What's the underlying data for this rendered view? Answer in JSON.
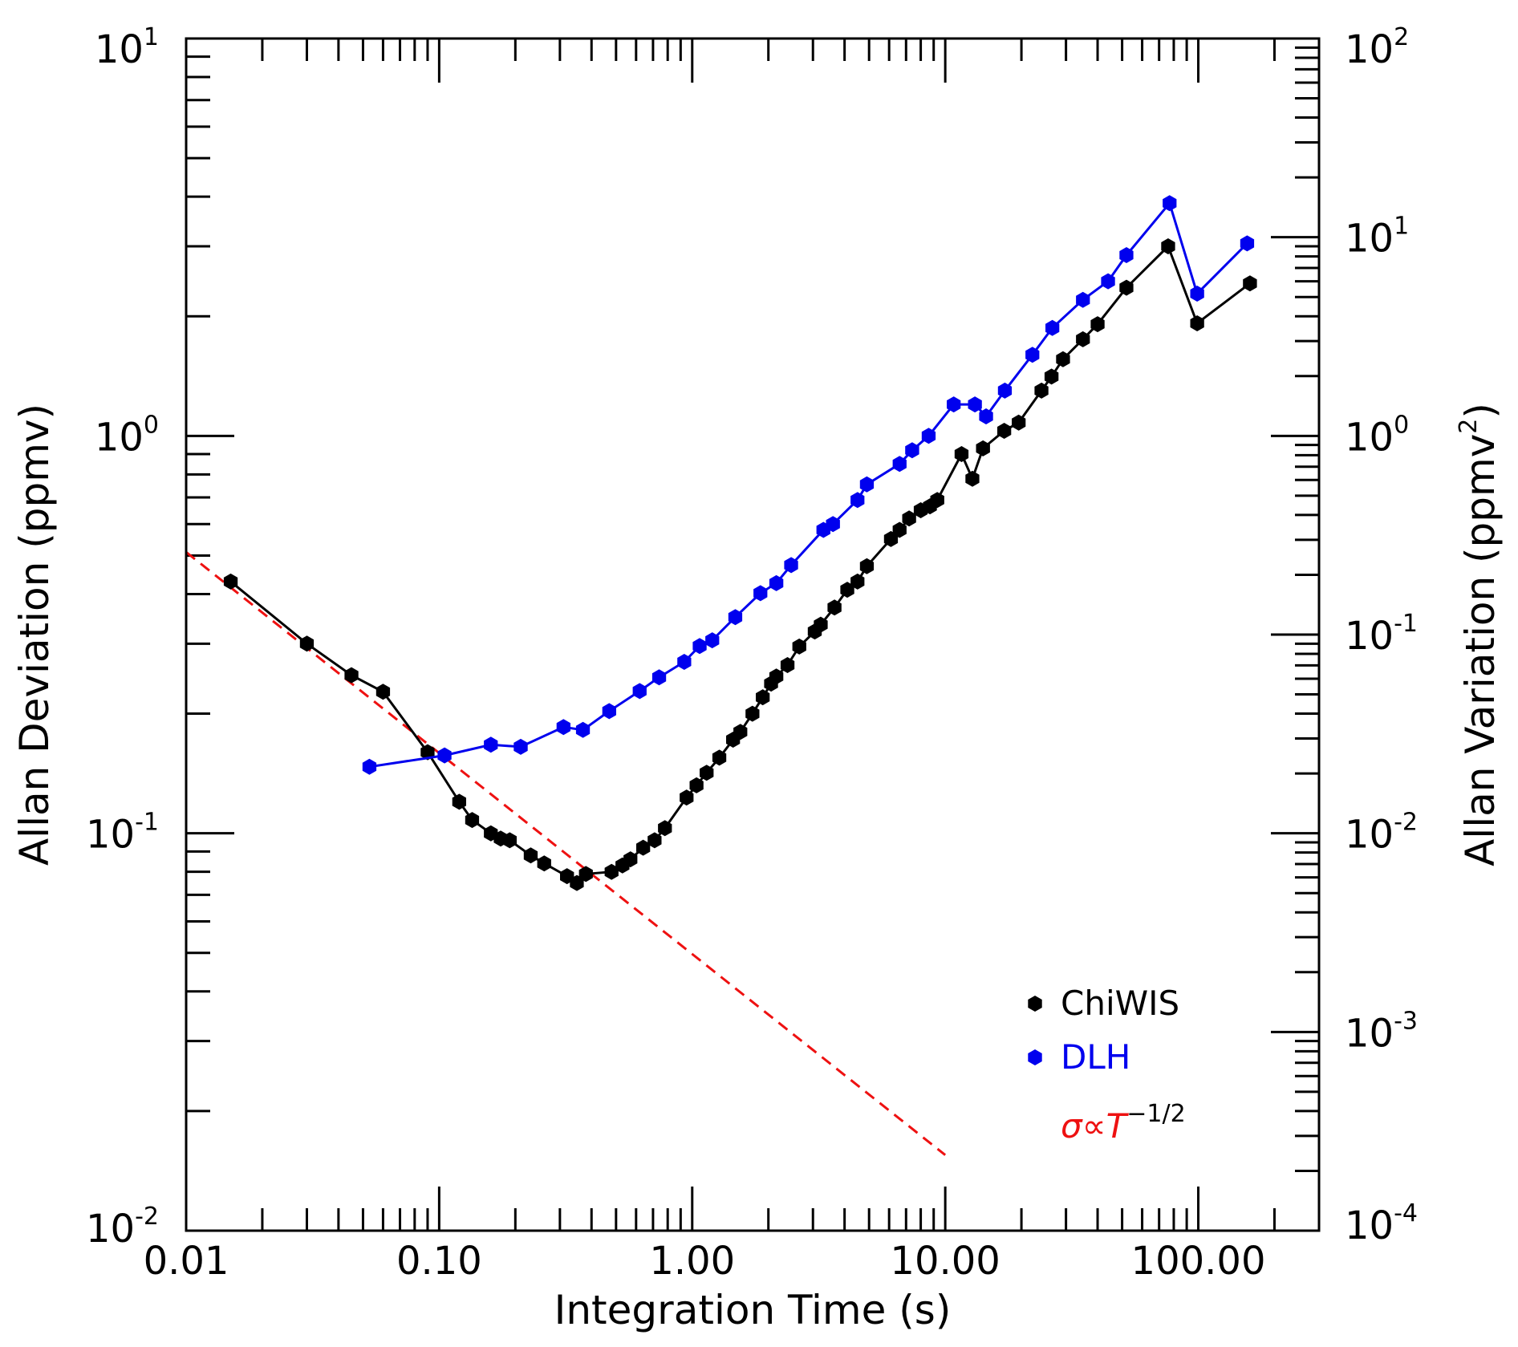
{
  "chart_data": {
    "type": "line",
    "title": "",
    "xlabel": "Integration Time (s)",
    "ylabel": "Allan Deviation (ppmv)",
    "ylabel_right": "Allan Variation (ppmv",
    "ylabel_right_sup": "2",
    "ylabel_right_close": ")",
    "x_scale": "log",
    "y_scale": "log",
    "xlim": [
      0.01,
      300
    ],
    "ylim": [
      0.01,
      10
    ],
    "y2lim": [
      0.0001,
      100
    ],
    "grid": false,
    "legend_position": "bottom-right",
    "x_ticks": [
      {
        "value": 0.01,
        "label": "0.01"
      },
      {
        "value": 0.1,
        "label": "0.10"
      },
      {
        "value": 1,
        "label": "1.00"
      },
      {
        "value": 10,
        "label": "10.00"
      },
      {
        "value": 100,
        "label": "100.00"
      }
    ],
    "y_ticks": [
      {
        "value": 0.01,
        "base": "10",
        "exp": "-2"
      },
      {
        "value": 0.1,
        "base": "10",
        "exp": "-1"
      },
      {
        "value": 1,
        "base": "10",
        "exp": "0"
      },
      {
        "value": 10,
        "base": "10",
        "exp": "1"
      }
    ],
    "y2_ticks": [
      {
        "value": 0.0001,
        "base": "10",
        "exp": "-4"
      },
      {
        "value": 0.001,
        "base": "10",
        "exp": "-3"
      },
      {
        "value": 0.01,
        "base": "10",
        "exp": "-2"
      },
      {
        "value": 0.1,
        "base": "10",
        "exp": "-1"
      },
      {
        "value": 1,
        "base": "10",
        "exp": "0"
      },
      {
        "value": 10,
        "base": "10",
        "exp": "1"
      },
      {
        "value": 100,
        "base": "10",
        "exp": "2"
      }
    ],
    "series": [
      {
        "name": "ChiWIS",
        "color": "#000000",
        "marker": "hexagon",
        "points": [
          [
            0.015,
            0.43
          ],
          [
            0.03,
            0.3
          ],
          [
            0.045,
            0.25
          ],
          [
            0.06,
            0.227
          ],
          [
            0.09,
            0.16
          ],
          [
            0.12,
            0.12
          ],
          [
            0.135,
            0.108
          ],
          [
            0.16,
            0.1
          ],
          [
            0.175,
            0.097
          ],
          [
            0.19,
            0.096
          ],
          [
            0.23,
            0.088
          ],
          [
            0.26,
            0.084
          ],
          [
            0.32,
            0.078
          ],
          [
            0.35,
            0.075
          ],
          [
            0.38,
            0.079
          ],
          [
            0.48,
            0.08
          ],
          [
            0.53,
            0.083
          ],
          [
            0.57,
            0.086
          ],
          [
            0.64,
            0.092
          ],
          [
            0.71,
            0.096
          ],
          [
            0.78,
            0.103
          ],
          [
            0.95,
            0.123
          ],
          [
            1.04,
            0.132
          ],
          [
            1.14,
            0.142
          ],
          [
            1.28,
            0.155
          ],
          [
            1.45,
            0.172
          ],
          [
            1.55,
            0.18
          ],
          [
            1.73,
            0.2
          ],
          [
            1.9,
            0.22
          ],
          [
            2.05,
            0.238
          ],
          [
            2.15,
            0.248
          ],
          [
            2.38,
            0.265
          ],
          [
            2.65,
            0.295
          ],
          [
            3.05,
            0.322
          ],
          [
            3.22,
            0.335
          ],
          [
            3.65,
            0.37
          ],
          [
            4.1,
            0.41
          ],
          [
            4.5,
            0.43
          ],
          [
            4.9,
            0.47
          ],
          [
            6.1,
            0.55
          ],
          [
            6.6,
            0.58
          ],
          [
            7.2,
            0.62
          ],
          [
            8.0,
            0.65
          ],
          [
            8.7,
            0.665
          ],
          [
            9.3,
            0.69
          ],
          [
            11.6,
            0.9
          ],
          [
            12.8,
            0.78
          ],
          [
            14.1,
            0.93
          ],
          [
            17.1,
            1.03
          ],
          [
            19.5,
            1.08
          ],
          [
            24.0,
            1.3
          ],
          [
            26.3,
            1.41
          ],
          [
            29.2,
            1.56
          ],
          [
            35.0,
            1.75
          ],
          [
            40.0,
            1.91
          ],
          [
            52.0,
            2.36
          ],
          [
            76.0,
            3.0
          ],
          [
            99.0,
            1.92
          ],
          [
            160.0,
            2.42
          ]
        ]
      },
      {
        "name": "DLH",
        "color": "#0000ee",
        "marker": "hexagon",
        "points": [
          [
            0.053,
            0.147
          ],
          [
            0.105,
            0.157
          ],
          [
            0.16,
            0.167
          ],
          [
            0.21,
            0.165
          ],
          [
            0.31,
            0.185
          ],
          [
            0.37,
            0.182
          ],
          [
            0.47,
            0.203
          ],
          [
            0.62,
            0.228
          ],
          [
            0.74,
            0.247
          ],
          [
            0.93,
            0.27
          ],
          [
            1.07,
            0.296
          ],
          [
            1.2,
            0.306
          ],
          [
            1.48,
            0.35
          ],
          [
            1.86,
            0.402
          ],
          [
            2.15,
            0.426
          ],
          [
            2.46,
            0.473
          ],
          [
            3.3,
            0.58
          ],
          [
            3.6,
            0.6
          ],
          [
            4.5,
            0.69
          ],
          [
            4.9,
            0.755
          ],
          [
            6.6,
            0.85
          ],
          [
            7.4,
            0.92
          ],
          [
            8.6,
            1.0
          ],
          [
            10.8,
            1.2
          ],
          [
            13.1,
            1.2
          ],
          [
            14.5,
            1.12
          ],
          [
            17.2,
            1.3
          ],
          [
            22.1,
            1.6
          ],
          [
            26.5,
            1.87
          ],
          [
            35.0,
            2.2
          ],
          [
            44.0,
            2.45
          ],
          [
            52.0,
            2.85
          ],
          [
            77.0,
            3.85
          ],
          [
            99.0,
            2.28
          ],
          [
            156.0,
            3.05
          ]
        ]
      }
    ],
    "reference_line": {
      "name": "σ∝T",
      "name_sup": "−1/2",
      "color": "#ee1111",
      "style": "dashed",
      "points": [
        [
          0.01,
          0.51
        ],
        [
          10.0,
          0.0155
        ]
      ]
    }
  }
}
